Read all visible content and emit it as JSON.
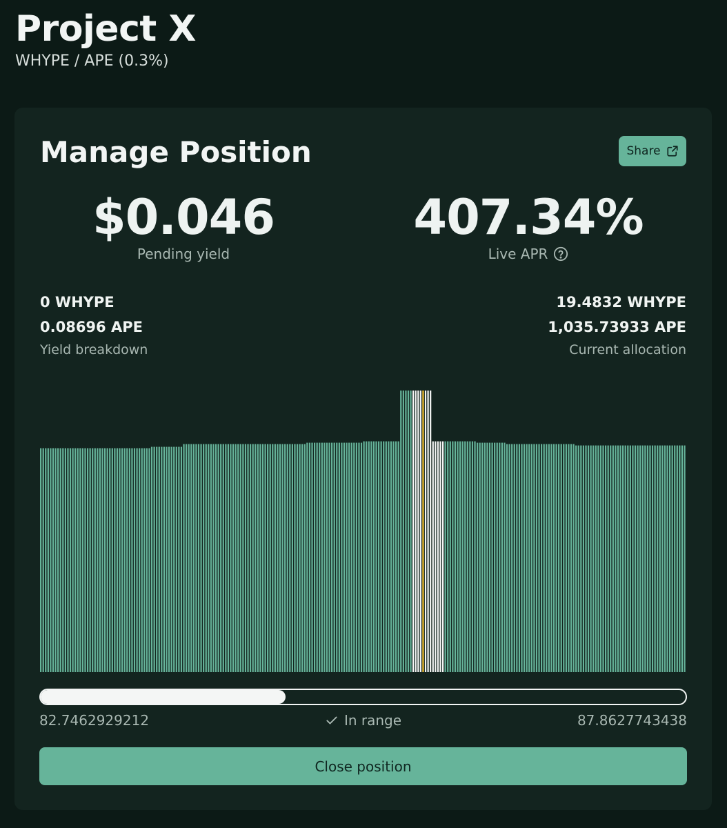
{
  "header": {
    "title": "Project X",
    "subtitle": "WHYPE / APE (0.3%)"
  },
  "card": {
    "title": "Manage Position",
    "share_label": "Share",
    "pending_yield": {
      "value": "$0.046",
      "label": "Pending yield"
    },
    "live_apr": {
      "value": "407.34%",
      "label": "Live APR",
      "icon": "question-circle-icon"
    },
    "yield_breakdown": {
      "whype": "0 WHYPE",
      "ape": "0.08696 APE",
      "label": "Yield breakdown"
    },
    "current_allocation": {
      "whype": "19.4832 WHYPE",
      "ape": "1,035.73933 APE",
      "label": "Current allocation"
    },
    "range": {
      "min": "82.7462929212",
      "max": "87.8627743438",
      "status": "In range",
      "progress_fraction": 0.38
    },
    "close_label": "Close position"
  },
  "colors": {
    "background": "#0c1a16",
    "card": "#13241f",
    "accent": "#66b49a",
    "in_range_bar": "#f4f6f5",
    "current_tick": "#f0c032"
  },
  "chart_data": {
    "type": "bar",
    "description_of_series": "liquidity distribution",
    "values": [
      3.26,
      3.26,
      3.26,
      3.26,
      3.26,
      3.26,
      3.26,
      3.26,
      3.26,
      3.26,
      3.26,
      3.26,
      3.26,
      3.26,
      3.26,
      3.26,
      3.26,
      3.26,
      3.26,
      3.26,
      3.26,
      3.26,
      3.26,
      3.26,
      3.26,
      3.26,
      3.26,
      3.26,
      3.26,
      3.26,
      3.26,
      3.26,
      3.26,
      3.26,
      3.26,
      3.26,
      3.26,
      3.26,
      3.26,
      3.26,
      3.26,
      3.26,
      3.26,
      3.26,
      3.26,
      3.28,
      3.28,
      3.28,
      3.28,
      3.28,
      3.28,
      3.28,
      3.28,
      3.28,
      3.28,
      3.28,
      3.28,
      3.28,
      3.32,
      3.32,
      3.32,
      3.32,
      3.32,
      3.32,
      3.32,
      3.32,
      3.32,
      3.32,
      3.32,
      3.32,
      3.32,
      3.32,
      3.32,
      3.32,
      3.32,
      3.32,
      3.32,
      3.32,
      3.32,
      3.32,
      3.32,
      3.32,
      3.32,
      3.32,
      3.32,
      3.32,
      3.32,
      3.32,
      3.32,
      3.32,
      3.32,
      3.32,
      3.32,
      3.32,
      3.32,
      3.32,
      3.32,
      3.32,
      3.32,
      3.32,
      3.32,
      3.32,
      3.32,
      3.32,
      3.32,
      3.32,
      3.32,
      3.32,
      3.34,
      3.34,
      3.34,
      3.34,
      3.34,
      3.34,
      3.34,
      3.34,
      3.34,
      3.34,
      3.34,
      3.34,
      3.34,
      3.34,
      3.34,
      3.34,
      3.34,
      3.34,
      3.34,
      3.34,
      3.34,
      3.34,
      3.34,
      3.36,
      3.36,
      3.36,
      3.36,
      3.36,
      3.36,
      3.36,
      3.36,
      3.36,
      3.36,
      3.36,
      3.36,
      3.36,
      3.36,
      3.36,
      4.1,
      4.1,
      4.1,
      4.1,
      4.1,
      4.1,
      4.1,
      4.1,
      4.1,
      4.1,
      4.1,
      4.1,
      4.1,
      3.36,
      3.36,
      3.36,
      3.36,
      3.36,
      3.36,
      3.36,
      3.36,
      3.36,
      3.36,
      3.36,
      3.36,
      3.36,
      3.36,
      3.36,
      3.36,
      3.36,
      3.36,
      3.34,
      3.34,
      3.34,
      3.34,
      3.34,
      3.34,
      3.34,
      3.34,
      3.34,
      3.34,
      3.34,
      3.34,
      3.32,
      3.32,
      3.32,
      3.32,
      3.32,
      3.32,
      3.32,
      3.32,
      3.32,
      3.32,
      3.32,
      3.32,
      3.32,
      3.32,
      3.32,
      3.32,
      3.32,
      3.32,
      3.32,
      3.32,
      3.32,
      3.32,
      3.32,
      3.32,
      3.32,
      3.32,
      3.32,
      3.32,
      3.3,
      3.3,
      3.3,
      3.3,
      3.3,
      3.3,
      3.3,
      3.3,
      3.3,
      3.3,
      3.3,
      3.3,
      3.3,
      3.3,
      3.3,
      3.3,
      3.3,
      3.3,
      3.3,
      3.3,
      3.3,
      3.3,
      3.3,
      3.3,
      3.3,
      3.3,
      3.3,
      3.3,
      3.3,
      3.3,
      3.3,
      3.3,
      3.3,
      3.3,
      3.3,
      3.3,
      3.3,
      3.3,
      3.3,
      3.3,
      3.3,
      3.3,
      3.3,
      3.3,
      3.3
    ],
    "in_range_start_index": 151,
    "in_range_end_index": 163,
    "current_tick_index": 155,
    "ylim": [
      0,
      4.2
    ]
  }
}
